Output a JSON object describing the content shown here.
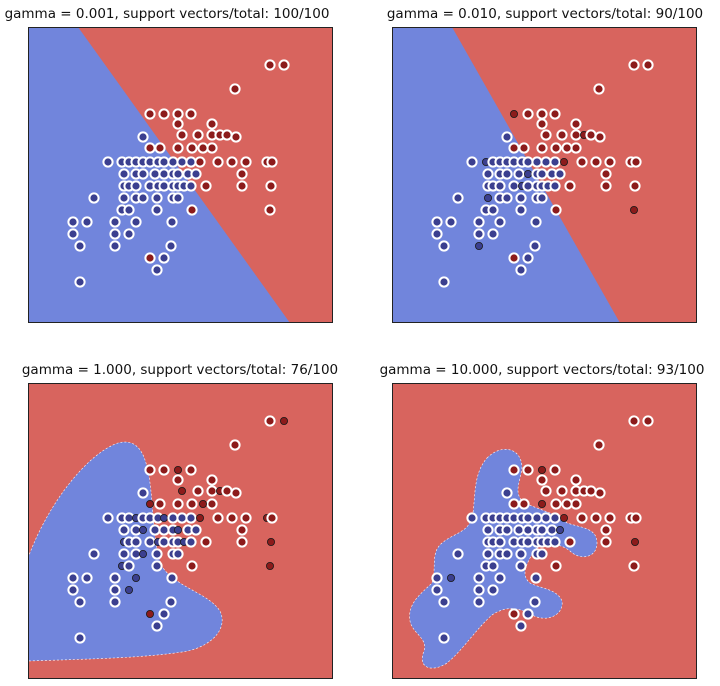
{
  "colors": {
    "class0_region": "#7185dc",
    "class1_region": "#d8645e",
    "class0_point": "#3b3f8f",
    "class1_point": "#8c1b1b",
    "support_vector_ring": "#ffffff",
    "frame": "#222222"
  },
  "chart_data": [
    {
      "type": "scatter",
      "title": "gamma = 0.001, support vectors/total: 100/100",
      "xlabel": "",
      "ylabel": "",
      "gamma": 0.001,
      "support_vectors": 100,
      "total": 100,
      "decision_boundary": "linear",
      "grid": false
    },
    {
      "type": "scatter",
      "title": "gamma = 0.010, support vectors/total: 90/100",
      "xlabel": "",
      "ylabel": "",
      "gamma": 0.01,
      "support_vectors": 90,
      "total": 100,
      "decision_boundary": "linear",
      "grid": false
    },
    {
      "type": "scatter",
      "title": "gamma = 1.000, support vectors/total: 76/100",
      "xlabel": "",
      "ylabel": "",
      "gamma": 1.0,
      "support_vectors": 76,
      "total": 100,
      "decision_boundary": "smooth blob",
      "grid": false
    },
    {
      "type": "scatter",
      "title": "gamma = 10.000, support vectors/total: 93/100",
      "xlabel": "",
      "ylabel": "",
      "gamma": 10.0,
      "support_vectors": 93,
      "total": 100,
      "decision_boundary": "irregular islands",
      "grid": false
    }
  ]
}
